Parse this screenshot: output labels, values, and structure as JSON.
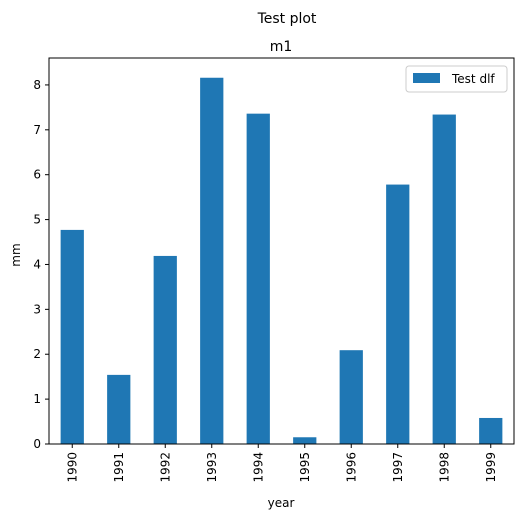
{
  "chart_data": {
    "type": "bar",
    "suptitle": "Test plot",
    "title": "m1",
    "xlabel": "year",
    "ylabel": "mm",
    "categories": [
      "1990",
      "1991",
      "1992",
      "1993",
      "1994",
      "1995",
      "1996",
      "1997",
      "1998",
      "1999"
    ],
    "series": [
      {
        "name": "Test dlf",
        "color": "#1f77b4",
        "values": [
          4.77,
          1.54,
          4.19,
          8.16,
          7.36,
          0.15,
          2.09,
          5.78,
          7.34,
          0.58
        ]
      }
    ],
    "ylim": [
      0,
      8.6
    ],
    "yticks": [
      0,
      1,
      2,
      3,
      4,
      5,
      6,
      7,
      8
    ],
    "grid": false,
    "legend_position": "top-right"
  }
}
